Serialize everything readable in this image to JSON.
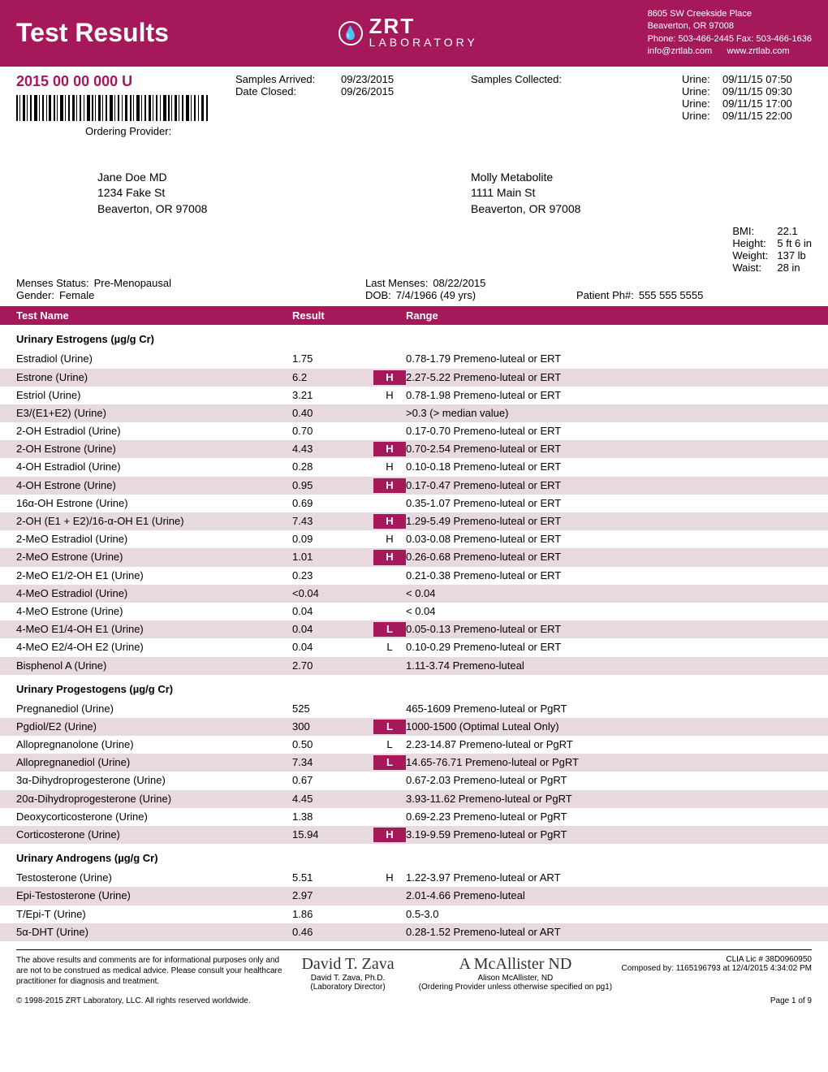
{
  "header": {
    "title": "Test Results",
    "logo_main": "ZRT",
    "logo_sub": "LABORATORY",
    "address_line1": "8605 SW Creekside Place",
    "address_line2": "Beaverton, OR 97008",
    "phone_fax": "Phone: 503-466-2445  Fax: 503-466-1636",
    "email": "info@zrtlab.com",
    "website": "www.zrtlab.com"
  },
  "meta": {
    "id": "2015 00 00 000 U",
    "samples_arrived_label": "Samples Arrived:",
    "samples_arrived": "09/23/2015",
    "date_closed_label": "Date Closed:",
    "date_closed": "09/26/2015",
    "samples_collected_label": "Samples Collected:",
    "ordering_provider_label": "Ordering Provider:",
    "urines": [
      {
        "lbl": "Urine:",
        "val": "09/11/15 07:50"
      },
      {
        "lbl": "Urine:",
        "val": "09/11/15 09:30"
      },
      {
        "lbl": "Urine:",
        "val": "09/11/15 17:00"
      },
      {
        "lbl": "Urine:",
        "val": "09/11/15 22:00"
      }
    ]
  },
  "provider": {
    "name": "Jane Doe MD",
    "street": "1234 Fake St",
    "city": "Beaverton, OR 97008"
  },
  "patient": {
    "name": "Molly Metabolite",
    "street": "1111 Main St",
    "city": "Beaverton, OR 97008"
  },
  "demo": {
    "menses_label": "Menses Status:",
    "menses": "Pre-Menopausal",
    "last_menses_label": "Last Menses:",
    "last_menses": "08/22/2015",
    "gender_label": "Gender:",
    "gender": "Female",
    "dob_label": "DOB:",
    "dob": "7/4/1966 (49 yrs)",
    "phone_label": "Patient Ph#:",
    "phone": "555 555 5555",
    "bmi_label": "BMI:",
    "bmi": "22.1",
    "height_label": "Height:",
    "height": "5 ft 6 in",
    "weight_label": "Weight:",
    "weight": "137 lb",
    "waist_label": "Waist:",
    "waist": "28 in"
  },
  "table": {
    "col_name": "Test Name",
    "col_result": "Result",
    "col_range": "Range"
  },
  "sections": [
    {
      "title": "Urinary Estrogens  (µg/g Cr)",
      "rows": [
        {
          "name": "Estradiol (Urine)",
          "result": "1.75",
          "flag": "",
          "range": "0.78-1.79 Premeno-luteal or ERT",
          "shaded": false
        },
        {
          "name": "Estrone (Urine)",
          "result": "6.2",
          "flag": "H",
          "flagbg": true,
          "range": "2.27-5.22 Premeno-luteal or ERT",
          "shaded": true
        },
        {
          "name": "Estriol (Urine)",
          "result": "3.21",
          "flag": "H",
          "range": "0.78-1.98 Premeno-luteal or ERT",
          "shaded": false
        },
        {
          "name": "E3/(E1+E2) (Urine)",
          "result": "0.40",
          "flag": "",
          "range": ">0.3 (> median value)",
          "shaded": true
        },
        {
          "name": "2-OH Estradiol (Urine)",
          "result": "0.70",
          "flag": "",
          "range": "0.17-0.70 Premeno-luteal or ERT",
          "shaded": false
        },
        {
          "name": "2-OH Estrone (Urine)",
          "result": "4.43",
          "flag": "H",
          "flagbg": true,
          "range": "0.70-2.54 Premeno-luteal or ERT",
          "shaded": true
        },
        {
          "name": "4-OH Estradiol (Urine)",
          "result": "0.28",
          "flag": "H",
          "range": "0.10-0.18 Premeno-luteal or ERT",
          "shaded": false
        },
        {
          "name": "4-OH Estrone (Urine)",
          "result": "0.95",
          "flag": "H",
          "flagbg": true,
          "range": "0.17-0.47 Premeno-luteal or ERT",
          "shaded": true
        },
        {
          "name": "16α-OH Estrone (Urine)",
          "result": "0.69",
          "flag": "",
          "range": "0.35-1.07 Premeno-luteal or ERT",
          "shaded": false
        },
        {
          "name": "2-OH (E1 + E2)/16-α-OH E1 (Urine)",
          "result": "7.43",
          "flag": "H",
          "flagbg": true,
          "range": "1.29-5.49 Premeno-luteal or ERT",
          "shaded": true
        },
        {
          "name": "2-MeO Estradiol (Urine)",
          "result": "0.09",
          "flag": "H",
          "range": "0.03-0.08 Premeno-luteal or ERT",
          "shaded": false
        },
        {
          "name": "2-MeO Estrone (Urine)",
          "result": "1.01",
          "flag": "H",
          "flagbg": true,
          "range": "0.26-0.68 Premeno-luteal or ERT",
          "shaded": true
        },
        {
          "name": "2-MeO E1/2-OH E1 (Urine)",
          "result": "0.23",
          "flag": "",
          "range": "0.21-0.38 Premeno-luteal or ERT",
          "shaded": false
        },
        {
          "name": "4-MeO Estradiol (Urine)",
          "result": "<0.04",
          "flag": "",
          "range": "< 0.04",
          "shaded": true
        },
        {
          "name": "4-MeO Estrone (Urine)",
          "result": "0.04",
          "flag": "",
          "range": "< 0.04",
          "shaded": false
        },
        {
          "name": "4-MeO E1/4-OH E1 (Urine)",
          "result": "0.04",
          "flag": "L",
          "flagbg": true,
          "range": "0.05-0.13 Premeno-luteal or ERT",
          "shaded": true
        },
        {
          "name": "4-MeO E2/4-OH E2 (Urine)",
          "result": "0.04",
          "flag": "L",
          "range": "0.10-0.29 Premeno-luteal or ERT",
          "shaded": false
        },
        {
          "name": "Bisphenol A (Urine)",
          "result": "2.70",
          "flag": "",
          "range": "1.11-3.74 Premeno-luteal",
          "shaded": true
        }
      ]
    },
    {
      "title": "Urinary Progestogens  (µg/g Cr)",
      "rows": [
        {
          "name": "Pregnanediol (Urine)",
          "result": "525",
          "flag": "",
          "range": "465-1609 Premeno-luteal or PgRT",
          "shaded": false
        },
        {
          "name": "Pgdiol/E2 (Urine)",
          "result": "300",
          "flag": "L",
          "flagbg": true,
          "range": "1000-1500 (Optimal Luteal Only)",
          "shaded": true
        },
        {
          "name": "Allopregnanolone (Urine)",
          "result": "0.50",
          "flag": "L",
          "range": "2.23-14.87 Premeno-luteal or PgRT",
          "shaded": false
        },
        {
          "name": "Allopregnanediol (Urine)",
          "result": "7.34",
          "flag": "L",
          "flagbg": true,
          "range": "14.65-76.71 Premeno-luteal or PgRT",
          "shaded": true
        },
        {
          "name": "3α-Dihydroprogesterone (Urine)",
          "result": "0.67",
          "flag": "",
          "range": "0.67-2.03 Premeno-luteal or PgRT",
          "shaded": false
        },
        {
          "name": "20α-Dihydroprogesterone (Urine)",
          "result": "4.45",
          "flag": "",
          "range": "3.93-11.62 Premeno-luteal or PgRT",
          "shaded": true
        },
        {
          "name": "Deoxycorticosterone (Urine)",
          "result": "1.38",
          "flag": "",
          "range": "0.69-2.23 Premeno-luteal or PgRT",
          "shaded": false
        },
        {
          "name": "Corticosterone (Urine)",
          "result": "15.94",
          "flag": "H",
          "flagbg": true,
          "range": "3.19-9.59 Premeno-luteal or PgRT",
          "shaded": true
        }
      ]
    },
    {
      "title": "Urinary Androgens (µg/g Cr)",
      "rows": [
        {
          "name": "Testosterone (Urine)",
          "result": "5.51",
          "flag": "H",
          "range": "1.22-3.97 Premeno-luteal or ART",
          "shaded": false
        },
        {
          "name": "Epi-Testosterone (Urine)",
          "result": "2.97",
          "flag": "",
          "range": "2.01-4.66 Premeno-luteal",
          "shaded": true
        },
        {
          "name": "T/Epi-T (Urine)",
          "result": "1.86",
          "flag": "",
          "range": "0.5-3.0",
          "shaded": false
        },
        {
          "name": "5α-DHT (Urine)",
          "result": "0.46",
          "flag": "",
          "range": "0.28-1.52 Premeno-luteal or ART",
          "shaded": true
        }
      ]
    }
  ],
  "footer": {
    "disclaimer": "The above results and comments are for informational purposes only and are not to be construed as medical advice. Please consult your healthcare practitioner for diagnosis and treatment.",
    "sig1_name": "David T. Zava",
    "sig1_title": "David T. Zava, Ph.D.",
    "sig1_role": "(Laboratory Director)",
    "sig2_name": "A McAllister ND",
    "sig2_title": "Alison McAllister, ND",
    "sig2_role": "(Ordering Provider unless otherwise specified on pg1)",
    "clia": "CLIA Lic # 38D0960950",
    "composed": "Composed by: 1165196793  at  12/4/2015 4:34:02 PM",
    "copyright": "© 1998-2015 ZRT Laboratory, LLC. All rights reserved worldwide.",
    "page": "Page 1 of 9"
  }
}
